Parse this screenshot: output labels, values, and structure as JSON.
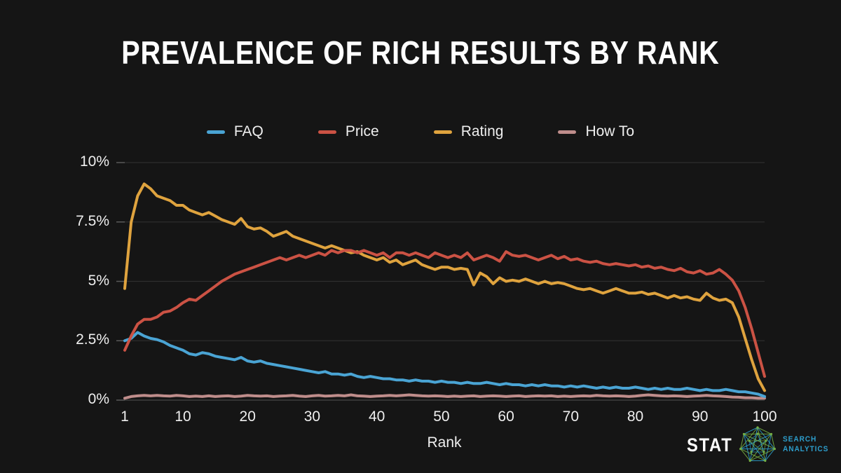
{
  "title": "PREVALENCE OF RICH RESULTS BY RANK",
  "chart_data": {
    "type": "line",
    "title": "PREVALENCE OF RICH RESULTS BY RANK",
    "xlabel": "Rank",
    "ylabel": "",
    "xlim": [
      1,
      100
    ],
    "ylim": [
      0,
      10
    ],
    "x_ticks": [
      1,
      10,
      20,
      30,
      40,
      50,
      60,
      70,
      80,
      90,
      100
    ],
    "y_ticks": [
      "0%",
      "2.5%",
      "5%",
      "7.5%",
      "10%"
    ],
    "y_tick_values": [
      0,
      2.5,
      5,
      7.5,
      10
    ],
    "grid": true,
    "legend_position": "top",
    "series": [
      {
        "name": "FAQ",
        "color": "#4aa4d4",
        "values": [
          2.5,
          2.6,
          2.85,
          2.7,
          2.6,
          2.55,
          2.45,
          2.3,
          2.2,
          2.1,
          1.95,
          1.9,
          2.0,
          1.95,
          1.85,
          1.8,
          1.75,
          1.7,
          1.8,
          1.65,
          1.6,
          1.65,
          1.55,
          1.5,
          1.45,
          1.4,
          1.35,
          1.3,
          1.25,
          1.2,
          1.15,
          1.2,
          1.1,
          1.1,
          1.05,
          1.1,
          1.0,
          0.95,
          1.0,
          0.95,
          0.9,
          0.9,
          0.85,
          0.85,
          0.8,
          0.85,
          0.8,
          0.8,
          0.75,
          0.8,
          0.75,
          0.75,
          0.7,
          0.75,
          0.7,
          0.7,
          0.75,
          0.7,
          0.65,
          0.7,
          0.65,
          0.65,
          0.6,
          0.65,
          0.6,
          0.65,
          0.6,
          0.6,
          0.55,
          0.6,
          0.55,
          0.6,
          0.55,
          0.5,
          0.55,
          0.5,
          0.55,
          0.5,
          0.5,
          0.55,
          0.5,
          0.45,
          0.5,
          0.45,
          0.5,
          0.45,
          0.45,
          0.5,
          0.45,
          0.4,
          0.45,
          0.4,
          0.4,
          0.45,
          0.4,
          0.35,
          0.35,
          0.3,
          0.25,
          0.15
        ]
      },
      {
        "name": "Price",
        "color": "#cb5244",
        "values": [
          2.1,
          2.7,
          3.2,
          3.4,
          3.4,
          3.5,
          3.7,
          3.75,
          3.9,
          4.1,
          4.25,
          4.2,
          4.4,
          4.6,
          4.8,
          5.0,
          5.15,
          5.3,
          5.4,
          5.5,
          5.6,
          5.7,
          5.8,
          5.9,
          6.0,
          5.9,
          6.0,
          6.1,
          6.0,
          6.1,
          6.2,
          6.1,
          6.3,
          6.2,
          6.3,
          6.3,
          6.2,
          6.3,
          6.2,
          6.1,
          6.2,
          6.0,
          6.2,
          6.2,
          6.1,
          6.2,
          6.1,
          6.0,
          6.2,
          6.1,
          6.0,
          6.1,
          6.0,
          6.2,
          5.9,
          6.0,
          6.1,
          6.0,
          5.85,
          6.25,
          6.1,
          6.05,
          6.1,
          6.0,
          5.9,
          6.0,
          6.1,
          5.95,
          6.05,
          5.9,
          5.95,
          5.85,
          5.8,
          5.85,
          5.75,
          5.7,
          5.75,
          5.7,
          5.65,
          5.7,
          5.6,
          5.65,
          5.55,
          5.6,
          5.5,
          5.45,
          5.55,
          5.4,
          5.35,
          5.45,
          5.3,
          5.35,
          5.5,
          5.3,
          5.05,
          4.6,
          3.9,
          3.0,
          2.0,
          1.0
        ]
      },
      {
        "name": "Rating",
        "color": "#dfa33e",
        "values": [
          4.7,
          7.5,
          8.6,
          9.1,
          8.9,
          8.6,
          8.5,
          8.4,
          8.2,
          8.2,
          8.0,
          7.9,
          7.8,
          7.9,
          7.75,
          7.6,
          7.5,
          7.4,
          7.65,
          7.3,
          7.2,
          7.25,
          7.1,
          6.9,
          7.0,
          7.1,
          6.9,
          6.8,
          6.7,
          6.6,
          6.5,
          6.4,
          6.5,
          6.4,
          6.3,
          6.2,
          6.25,
          6.1,
          6.0,
          5.9,
          6.0,
          5.8,
          5.9,
          5.7,
          5.8,
          5.9,
          5.7,
          5.6,
          5.5,
          5.6,
          5.6,
          5.5,
          5.55,
          5.5,
          4.85,
          5.35,
          5.2,
          4.9,
          5.15,
          5.0,
          5.05,
          5.0,
          5.1,
          5.0,
          4.9,
          5.0,
          4.9,
          4.95,
          4.9,
          4.8,
          4.7,
          4.65,
          4.7,
          4.6,
          4.5,
          4.6,
          4.7,
          4.6,
          4.5,
          4.5,
          4.55,
          4.45,
          4.5,
          4.4,
          4.3,
          4.4,
          4.3,
          4.35,
          4.25,
          4.2,
          4.5,
          4.3,
          4.2,
          4.25,
          4.1,
          3.5,
          2.6,
          1.7,
          0.9,
          0.4
        ]
      },
      {
        "name": "How To",
        "color": "#bf8d8b",
        "values": [
          0.08,
          0.15,
          0.18,
          0.2,
          0.18,
          0.2,
          0.18,
          0.17,
          0.2,
          0.18,
          0.15,
          0.17,
          0.15,
          0.18,
          0.15,
          0.17,
          0.18,
          0.15,
          0.17,
          0.2,
          0.18,
          0.17,
          0.18,
          0.15,
          0.17,
          0.18,
          0.2,
          0.17,
          0.15,
          0.18,
          0.2,
          0.17,
          0.18,
          0.2,
          0.18,
          0.22,
          0.18,
          0.17,
          0.15,
          0.17,
          0.18,
          0.2,
          0.18,
          0.2,
          0.22,
          0.2,
          0.18,
          0.17,
          0.18,
          0.17,
          0.15,
          0.17,
          0.15,
          0.17,
          0.18,
          0.15,
          0.17,
          0.18,
          0.17,
          0.15,
          0.17,
          0.18,
          0.15,
          0.17,
          0.18,
          0.17,
          0.18,
          0.15,
          0.17,
          0.15,
          0.17,
          0.18,
          0.17,
          0.2,
          0.18,
          0.17,
          0.18,
          0.17,
          0.15,
          0.17,
          0.2,
          0.22,
          0.2,
          0.18,
          0.17,
          0.18,
          0.17,
          0.15,
          0.17,
          0.18,
          0.2,
          0.18,
          0.17,
          0.15,
          0.13,
          0.12,
          0.1,
          0.1,
          0.08,
          0.08
        ]
      }
    ]
  },
  "axis": {
    "x_label": "Rank"
  },
  "logo": {
    "brand": "STAT",
    "tagline_line1": "SEARCH",
    "tagline_line2": "ANALYTICS"
  },
  "colors": {
    "background": "#151515",
    "text": "#f0f0f0",
    "gridline": "#2e2e2e",
    "axis_line": "#484848",
    "tick": "#5a5a5a",
    "logo_blue": "#2d9dcb",
    "logo_green": "#76b043"
  }
}
